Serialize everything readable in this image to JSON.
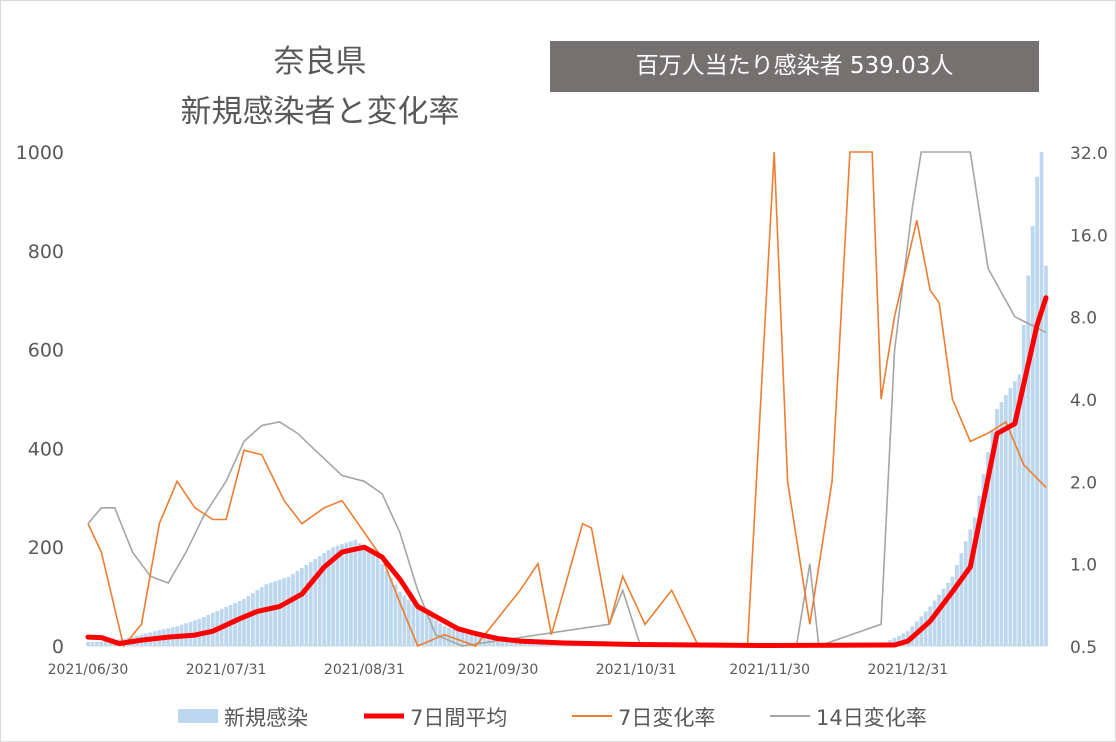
{
  "title_line1": "奈良県",
  "title_line2": "新規感染者と変化率",
  "badge": {
    "label": "百万人当たり感染者",
    "value": "539.03人"
  },
  "colors": {
    "bars": "#bdd7ee",
    "avg": "#ff0000",
    "rate7": "#ed7d31",
    "rate14": "#a5a5a5",
    "badge_bg": "#767171"
  },
  "chart_data": {
    "type": "bar+line",
    "left_axis": {
      "min": 0,
      "max": 1000,
      "ticks": [
        "0",
        "200",
        "400",
        "600",
        "800",
        "1000"
      ]
    },
    "right_axis": {
      "scale": "log",
      "min": 0.5,
      "max": 32.0,
      "ticks": [
        "0.5",
        "1.0",
        "2.0",
        "4.0",
        "8.0",
        "16.0",
        "32.0"
      ]
    },
    "x_axis": {
      "start": "2021/06/30",
      "end": "2022/01/31",
      "tick_labels": [
        "2021/06/30",
        "2021/07/31",
        "2021/08/31",
        "2021/09/30",
        "2021/10/31",
        "2021/11/30",
        "2021/12/31"
      ]
    },
    "legend": [
      "新規感染",
      "7日間平均",
      "7日変化率",
      "14日変化率"
    ],
    "legend_placement": "bottom",
    "series": [
      {
        "name": "新規感染",
        "kind": "bar",
        "axis": "left",
        "points": [
          [
            "2021/06/30",
            8
          ],
          [
            "2021/07/05",
            10
          ],
          [
            "2021/07/10",
            18
          ],
          [
            "2021/07/15",
            30
          ],
          [
            "2021/07/20",
            40
          ],
          [
            "2021/07/25",
            55
          ],
          [
            "2021/07/30",
            75
          ],
          [
            "2021/08/04",
            95
          ],
          [
            "2021/08/09",
            125
          ],
          [
            "2021/08/14",
            140
          ],
          [
            "2021/08/19",
            170
          ],
          [
            "2021/08/24",
            200
          ],
          [
            "2021/08/29",
            215
          ],
          [
            "2021/09/03",
            180
          ],
          [
            "2021/09/08",
            110
          ],
          [
            "2021/09/13",
            70
          ],
          [
            "2021/09/18",
            40
          ],
          [
            "2021/09/23",
            25
          ],
          [
            "2021/09/30",
            12
          ],
          [
            "2021/10/10",
            6
          ],
          [
            "2021/10/31",
            3
          ],
          [
            "2021/11/30",
            1
          ],
          [
            "2021/12/25",
            3
          ],
          [
            "2021/12/31",
            30
          ],
          [
            "2022/01/05",
            80
          ],
          [
            "2022/01/10",
            140
          ],
          [
            "2022/01/15",
            260
          ],
          [
            "2022/01/20",
            480
          ],
          [
            "2022/01/25",
            550
          ],
          [
            "2022/01/29",
            950
          ],
          [
            "2022/01/30",
            1000
          ],
          [
            "2022/01/31",
            770
          ]
        ]
      },
      {
        "name": "7日間平均",
        "kind": "line",
        "axis": "left",
        "points": [
          [
            "2021/06/30",
            18
          ],
          [
            "2021/07/03",
            17
          ],
          [
            "2021/07/07",
            5
          ],
          [
            "2021/07/12",
            12
          ],
          [
            "2021/07/18",
            18
          ],
          [
            "2021/07/24",
            22
          ],
          [
            "2021/07/28",
            30
          ],
          [
            "2021/08/03",
            55
          ],
          [
            "2021/08/07",
            70
          ],
          [
            "2021/08/12",
            80
          ],
          [
            "2021/08/17",
            105
          ],
          [
            "2021/08/22",
            160
          ],
          [
            "2021/08/26",
            190
          ],
          [
            "2021/08/31",
            200
          ],
          [
            "2021/09/04",
            180
          ],
          [
            "2021/09/08",
            135
          ],
          [
            "2021/09/12",
            80
          ],
          [
            "2021/09/16",
            60
          ],
          [
            "2021/09/21",
            35
          ],
          [
            "2021/09/25",
            25
          ],
          [
            "2021/09/30",
            15
          ],
          [
            "2021/10/05",
            10
          ],
          [
            "2021/10/15",
            6
          ],
          [
            "2021/10/31",
            3
          ],
          [
            "2021/11/30",
            1
          ],
          [
            "2021/12/28",
            2
          ],
          [
            "2021/12/31",
            10
          ],
          [
            "2022/01/05",
            50
          ],
          [
            "2022/01/10",
            110
          ],
          [
            "2022/01/14",
            160
          ],
          [
            "2022/01/20",
            430
          ],
          [
            "2022/01/24",
            450
          ],
          [
            "2022/01/29",
            650
          ],
          [
            "2022/01/31",
            705
          ]
        ]
      },
      {
        "name": "7日変化率",
        "kind": "line",
        "axis": "right",
        "points": [
          [
            "2021/06/30",
            1.4
          ],
          [
            "2021/07/03",
            1.1
          ],
          [
            "2021/07/08",
            0.5
          ],
          [
            "2021/07/12",
            0.6
          ],
          [
            "2021/07/16",
            1.4
          ],
          [
            "2021/07/20",
            2.0
          ],
          [
            "2021/07/24",
            1.6
          ],
          [
            "2021/07/28",
            1.45
          ],
          [
            "2021/07/31",
            1.45
          ],
          [
            "2021/08/04",
            2.6
          ],
          [
            "2021/08/08",
            2.5
          ],
          [
            "2021/08/13",
            1.7
          ],
          [
            "2021/08/17",
            1.4
          ],
          [
            "2021/08/22",
            1.6
          ],
          [
            "2021/08/26",
            1.7
          ],
          [
            "2021/08/31",
            1.3
          ],
          [
            "2021/09/04",
            1.05
          ],
          [
            "2021/09/08",
            0.72
          ],
          [
            "2021/09/12",
            0.5
          ],
          [
            "2021/09/18",
            0.55
          ],
          [
            "2021/09/25",
            0.5
          ],
          [
            "2021/10/05",
            0.8
          ],
          [
            "2021/10/09",
            1.0
          ],
          [
            "2021/10/12",
            0.55
          ],
          [
            "2021/10/19",
            1.4
          ],
          [
            "2021/10/21",
            1.35
          ],
          [
            "2021/10/25",
            0.6
          ],
          [
            "2021/10/28",
            0.9
          ],
          [
            "2021/11/02",
            0.6
          ],
          [
            "2021/11/08",
            0.8
          ],
          [
            "2021/11/14",
            0.5
          ],
          [
            "2021/11/25",
            0.5
          ],
          [
            "2021/12/01",
            32.0
          ],
          [
            "2021/12/04",
            2.0
          ],
          [
            "2021/12/09",
            0.6
          ],
          [
            "2021/12/14",
            2.0
          ],
          [
            "2021/12/18",
            32.0
          ],
          [
            "2021/12/23",
            32.0
          ],
          [
            "2021/12/25",
            4.0
          ],
          [
            "2021/12/28",
            8.0
          ],
          [
            "2022/01/02",
            18.0
          ],
          [
            "2022/01/05",
            10.0
          ],
          [
            "2022/01/07",
            9.0
          ],
          [
            "2022/01/10",
            4.0
          ],
          [
            "2022/01/14",
            2.8
          ],
          [
            "2022/01/18",
            3.0
          ],
          [
            "2022/01/22",
            3.3
          ],
          [
            "2022/01/26",
            2.3
          ],
          [
            "2022/01/31",
            1.9
          ]
        ]
      },
      {
        "name": "14日変化率",
        "kind": "line",
        "axis": "right",
        "points": [
          [
            "2021/06/30",
            1.4
          ],
          [
            "2021/07/03",
            1.6
          ],
          [
            "2021/07/06",
            1.6
          ],
          [
            "2021/07/10",
            1.1
          ],
          [
            "2021/07/14",
            0.9
          ],
          [
            "2021/07/18",
            0.85
          ],
          [
            "2021/07/22",
            1.1
          ],
          [
            "2021/07/26",
            1.5
          ],
          [
            "2021/07/31",
            2.0
          ],
          [
            "2021/08/04",
            2.8
          ],
          [
            "2021/08/08",
            3.2
          ],
          [
            "2021/08/12",
            3.3
          ],
          [
            "2021/08/16",
            3.0
          ],
          [
            "2021/08/20",
            2.6
          ],
          [
            "2021/08/26",
            2.1
          ],
          [
            "2021/08/31",
            2.0
          ],
          [
            "2021/09/04",
            1.8
          ],
          [
            "2021/09/08",
            1.3
          ],
          [
            "2021/09/12",
            0.8
          ],
          [
            "2021/09/16",
            0.55
          ],
          [
            "2021/09/22",
            0.5
          ],
          [
            "2021/10/25",
            0.6
          ],
          [
            "2021/10/28",
            0.8
          ],
          [
            "2021/11/01",
            0.5
          ],
          [
            "2021/12/06",
            0.5
          ],
          [
            "2021/12/09",
            1.0
          ],
          [
            "2021/12/11",
            0.5
          ],
          [
            "2021/12/25",
            0.6
          ],
          [
            "2021/12/28",
            6.0
          ],
          [
            "2022/01/01",
            20.0
          ],
          [
            "2022/01/03",
            32.0
          ],
          [
            "2022/01/14",
            32.0
          ],
          [
            "2022/01/18",
            12.0
          ],
          [
            "2022/01/24",
            8.0
          ],
          [
            "2022/01/31",
            7.0
          ]
        ]
      }
    ]
  }
}
